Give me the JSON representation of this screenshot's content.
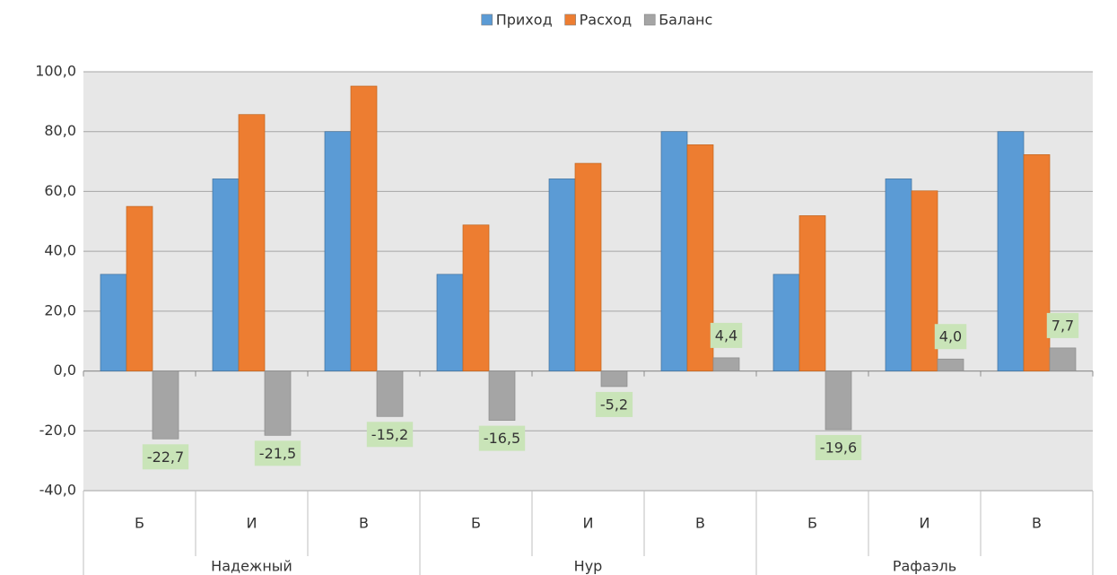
{
  "chart_data": {
    "type": "bar",
    "categories": [
      "Б",
      "И",
      "В",
      "Б",
      "И",
      "В",
      "Б",
      "И",
      "В"
    ],
    "groups": [
      "Надежный",
      "Нур",
      "Рафаэль"
    ],
    "series": [
      {
        "name": "Приход",
        "color": "#5b9bd5",
        "values": [
          32.3,
          64.2,
          80,
          32.3,
          64.2,
          80,
          32.3,
          64.2,
          80
        ]
      },
      {
        "name": "Расход",
        "color": "#ed7d31",
        "values": [
          55.0,
          85.7,
          95.2,
          48.8,
          69.4,
          75.6,
          51.9,
          60.2,
          72.3
        ]
      },
      {
        "name": "Баланс",
        "color": "#a5a5a5",
        "values": [
          -22.7,
          -21.5,
          -15.2,
          -16.5,
          -5.2,
          4.4,
          -19.6,
          4.0,
          7.7
        ],
        "value_labels": [
          "-22,7",
          "-21,5",
          "-15,2",
          "-16,5",
          "-5,2",
          "4,4",
          "-19,6",
          "4,0",
          "7,7"
        ]
      }
    ],
    "ylim": [
      -40,
      100
    ],
    "yticks": [
      {
        "value": -40,
        "label": "-40,0"
      },
      {
        "value": -20,
        "label": "-20,0"
      },
      {
        "value": 0,
        "label": "0,0"
      },
      {
        "value": 20,
        "label": "20,0"
      },
      {
        "value": 40,
        "label": "40,0"
      },
      {
        "value": 60,
        "label": "60,0"
      },
      {
        "value": 80,
        "label": "80,0"
      },
      {
        "value": 100,
        "label": "100,0"
      }
    ],
    "grid": true,
    "legend": "top"
  }
}
